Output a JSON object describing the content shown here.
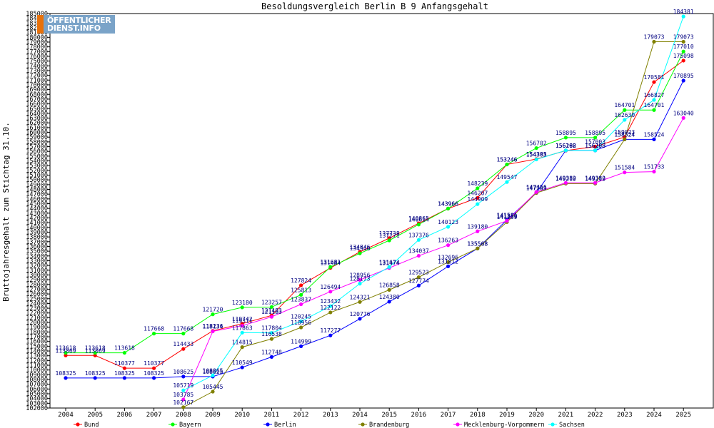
{
  "chart_data": {
    "type": "line",
    "title": "Besoldungsvergleich Berlin B 9 Anfangsgehalt",
    "ylabel": "Bruttojahresgehalt zum Stichtag 31.10.",
    "xlabel": "",
    "x": [
      2004,
      2005,
      2006,
      2007,
      2008,
      2009,
      2010,
      2011,
      2012,
      2013,
      2014,
      2015,
      2016,
      2017,
      2018,
      2019,
      2020,
      2021,
      2022,
      2023,
      2024,
      2025
    ],
    "ylim": [
      102000,
      185000
    ],
    "ytick_step": 1000,
    "grid": false,
    "legend_position": "bottom",
    "series": [
      {
        "name": "Bund",
        "color": "#ff0000",
        "values": [
          113069,
          113069,
          110377,
          110377,
          114433,
          118236,
          119742,
          121483,
          127824,
          131484,
          134846,
          137738,
          140865,
          143966,
          146207,
          153246,
          154385,
          156162,
          157003,
          159023,
          170581,
          175098
        ]
      },
      {
        "name": "Bayern",
        "color": "#00ff00",
        "values": [
          113618,
          113618,
          113618,
          117668,
          117668,
          121720,
          123180,
          123257,
          125813,
          131681,
          134546,
          137271,
          140614,
          143966,
          148239,
          153246,
          156702,
          158895,
          158895,
          164701,
          164701,
          177010
        ]
      },
      {
        "name": "Berlin",
        "color": "#0000ff",
        "values": [
          108325,
          108325,
          108325,
          108325,
          108625,
          108625,
          110549,
          112748,
          114999,
          117277,
          120776,
          124380,
          127774,
          131812,
          135568,
          141581,
          147263,
          156198,
          156198,
          158524,
          158524,
          170895
        ]
      },
      {
        "name": "Brandenburg",
        "color": "#808000",
        "values": [
          null,
          null,
          null,
          null,
          102167,
          105445,
          114815,
          116538,
          118956,
          122122,
          124321,
          126858,
          129523,
          132696,
          135568,
          141139,
          147263,
          149219,
          149219,
          158524,
          179073,
          179073
        ]
      },
      {
        "name": "Mecklenburg-Vorpommern",
        "color": "#ff00ff",
        "values": [
          null,
          null,
          null,
          null,
          103785,
          118134,
          119311,
          121183,
          123837,
          126494,
          128956,
          131474,
          134037,
          136263,
          139180,
          141389,
          147456,
          149382,
          149382,
          151584,
          151733,
          163040
        ]
      },
      {
        "name": "Sachsen",
        "color": "#00ffff",
        "values": [
          null,
          null,
          null,
          null,
          105719,
          108865,
          117863,
          117804,
          120245,
          123432,
          128173,
          131674,
          137376,
          140123,
          144909,
          149547,
          154303,
          156208,
          156208,
          162630,
          166827,
          184381
        ]
      }
    ]
  },
  "logo": {
    "line1": "ÖFFENTLICHER",
    "line2": "DIENST.INFO"
  }
}
